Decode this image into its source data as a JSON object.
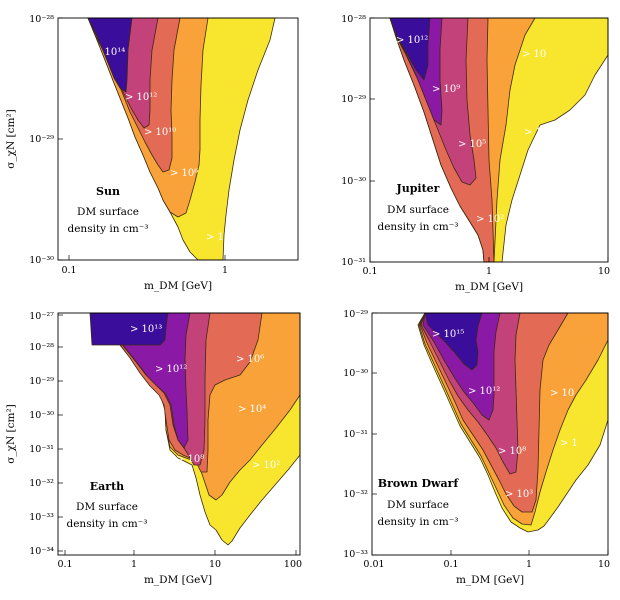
{
  "colors": {
    "level1": "#f7e52e",
    "level2": "#f9a23a",
    "level3": "#e36a55",
    "level4": "#c4427a",
    "level5": "#8a1aa6",
    "level6": "#3a0d9b"
  },
  "chart_data": [
    {
      "type": "contour",
      "title": "Sun",
      "subtitle_lines": [
        "DM surface",
        "density in cm⁻³"
      ],
      "xlabel": "m_DM [GeV]",
      "ylabel": "σ_χN [cm²]",
      "x_scale": "log",
      "y_scale": "log",
      "xlim": [
        0.1,
        3.5
      ],
      "ylim": [
        1e-30,
        1e-28
      ],
      "x_ticks": [
        {
          "label": "0.1"
        },
        {
          "label": "1"
        }
      ],
      "y_ticks": [
        {
          "label": "10⁻³⁰"
        },
        {
          "label": "10⁻²⁹"
        },
        {
          "label": "10⁻²⁸"
        }
      ],
      "contour_labels": [
        "> 10¹⁴",
        "> 10¹²",
        "> 10¹⁰",
        "> 10⁶",
        "> 1"
      ]
    },
    {
      "type": "contour",
      "title": "Jupiter",
      "subtitle_lines": [
        "DM surface",
        "density in cm⁻³"
      ],
      "xlabel": "m_DM [GeV]",
      "ylabel": "",
      "x_scale": "log",
      "y_scale": "log",
      "xlim": [
        0.1,
        10
      ],
      "ylim": [
        1e-31,
        1e-28
      ],
      "x_ticks": [
        {
          "label": "0.1"
        },
        {
          "label": "1"
        },
        {
          "label": "10"
        }
      ],
      "y_ticks": [
        {
          "label": "10⁻³¹"
        },
        {
          "label": "10⁻³⁰"
        },
        {
          "label": "10⁻²⁹"
        },
        {
          "label": "10⁻²⁸"
        }
      ],
      "contour_labels": [
        "> 10¹²",
        "> 10⁹",
        "> 10⁵",
        "> 10²",
        "> 10",
        "> 1"
      ]
    },
    {
      "type": "contour",
      "title": "Earth",
      "subtitle_lines": [
        "DM surface",
        "density in cm⁻³"
      ],
      "xlabel": "m_DM [GeV]",
      "ylabel": "σ_χN [cm²]",
      "x_scale": "log",
      "y_scale": "log",
      "xlim": [
        0.1,
        100
      ],
      "ylim": [
        1e-34,
        1e-27
      ],
      "x_ticks": [
        {
          "label": "0.1"
        },
        {
          "label": "1"
        },
        {
          "label": "10"
        },
        {
          "label": "100"
        }
      ],
      "y_ticks": [
        {
          "label": "10⁻³⁴"
        },
        {
          "label": "10⁻³³"
        },
        {
          "label": "10⁻³²"
        },
        {
          "label": "10⁻³¹"
        },
        {
          "label": "10⁻³⁰"
        },
        {
          "label": "10⁻²⁹"
        },
        {
          "label": "10⁻²⁸"
        },
        {
          "label": "10⁻²⁷"
        }
      ],
      "contour_labels": [
        "> 10¹³",
        "> 10¹²",
        "> 10⁸",
        "> 10⁶",
        "> 10⁴",
        "> 10²"
      ]
    },
    {
      "type": "contour",
      "title": "Brown Dwarf",
      "subtitle_lines": [
        "DM surface",
        "density in cm⁻³"
      ],
      "xlabel": "m_DM [GeV]",
      "ylabel": "",
      "x_scale": "log",
      "y_scale": "log",
      "xlim": [
        0.01,
        10
      ],
      "ylim": [
        1e-33,
        1e-29
      ],
      "x_ticks": [
        {
          "label": "0.01"
        },
        {
          "label": "0.1"
        },
        {
          "label": "1"
        },
        {
          "label": "10"
        }
      ],
      "y_ticks": [
        {
          "label": "10⁻³³"
        },
        {
          "label": "10⁻³²"
        },
        {
          "label": "10⁻³¹"
        },
        {
          "label": "10⁻³⁰"
        },
        {
          "label": "10⁻²⁹"
        }
      ],
      "contour_labels": [
        "> 10¹⁵",
        "> 10¹²",
        "> 10⁸",
        "> 10³",
        "> 10",
        "> 1"
      ]
    }
  ]
}
